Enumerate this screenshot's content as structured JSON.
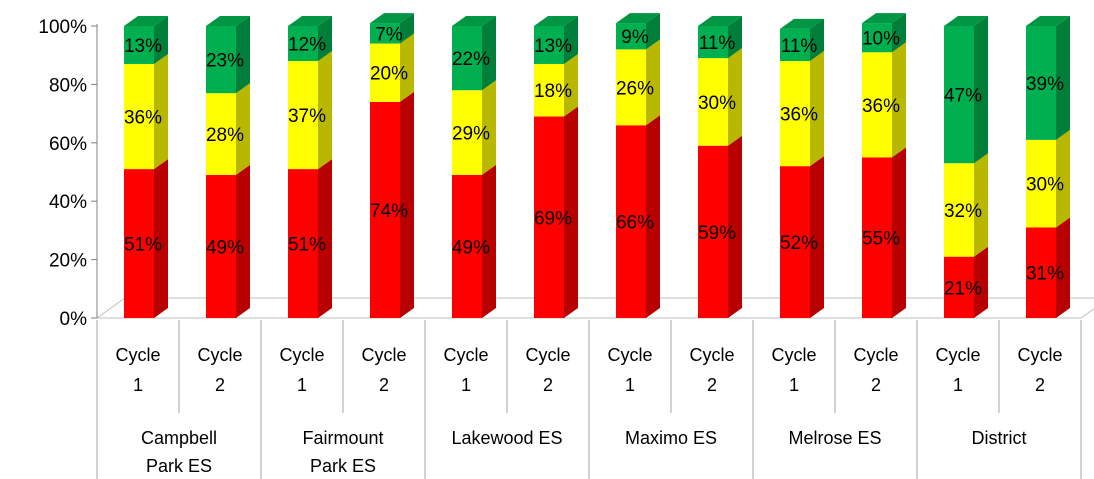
{
  "chart_data": {
    "type": "bar",
    "stacked": true,
    "percent_stacked": true,
    "three_d": true,
    "title": "",
    "xlabel": "",
    "ylabel": "",
    "ylim": [
      0,
      100
    ],
    "yticks": [
      "0%",
      "20%",
      "40%",
      "60%",
      "80%",
      "100%"
    ],
    "grid": false,
    "legend": "none",
    "groups": [
      {
        "label": "Campbell Park ES",
        "lines": [
          "Campbell",
          "Park ES"
        ]
      },
      {
        "label": "Fairmount Park ES",
        "lines": [
          "Fairmount",
          "Park ES"
        ]
      },
      {
        "label": "Lakewood ES",
        "lines": [
          "Lakewood ES"
        ]
      },
      {
        "label": "Maximo ES",
        "lines": [
          "Maximo ES"
        ]
      },
      {
        "label": "Melrose ES",
        "lines": [
          "Melrose ES"
        ]
      },
      {
        "label": "District",
        "lines": [
          "District"
        ]
      }
    ],
    "categories": [
      {
        "group": 0,
        "lines": [
          "Cycle",
          "1"
        ]
      },
      {
        "group": 0,
        "lines": [
          "Cycle",
          "2"
        ]
      },
      {
        "group": 1,
        "lines": [
          "Cycle",
          "1"
        ]
      },
      {
        "group": 1,
        "lines": [
          "Cycle",
          "2"
        ]
      },
      {
        "group": 2,
        "lines": [
          "Cycle",
          "1"
        ]
      },
      {
        "group": 2,
        "lines": [
          "Cycle",
          "2"
        ]
      },
      {
        "group": 3,
        "lines": [
          "Cycle",
          "1"
        ]
      },
      {
        "group": 3,
        "lines": [
          "Cycle",
          "2"
        ]
      },
      {
        "group": 4,
        "lines": [
          "Cycle",
          "1"
        ]
      },
      {
        "group": 4,
        "lines": [
          "Cycle",
          "2"
        ]
      },
      {
        "group": 5,
        "lines": [
          "Cycle",
          "1"
        ]
      },
      {
        "group": 5,
        "lines": [
          "Cycle",
          "2"
        ]
      }
    ],
    "series": [
      {
        "color": "#ff0000",
        "values": [
          51,
          49,
          51,
          74,
          49,
          69,
          66,
          59,
          52,
          55,
          21,
          31
        ],
        "labels": [
          "51%",
          "49%",
          "51%",
          "74%",
          "49%",
          "69%",
          "66%",
          "59%",
          "52%",
          "55%",
          "21%",
          "31%"
        ]
      },
      {
        "color": "#ffff00",
        "values": [
          36,
          28,
          37,
          20,
          29,
          18,
          26,
          30,
          36,
          36,
          32,
          30
        ],
        "labels": [
          "36%",
          "28%",
          "37%",
          "20%",
          "29%",
          "18%",
          "26%",
          "30%",
          "36%",
          "36%",
          "32%",
          "30%"
        ]
      },
      {
        "color": "#00b050",
        "values": [
          13,
          23,
          12,
          7,
          22,
          13,
          9,
          11,
          11,
          10,
          47,
          39
        ],
        "labels": [
          "13%",
          "23%",
          "12%",
          "7%",
          "22%",
          "13%",
          "9%",
          "11%",
          "11%",
          "10%",
          "47%",
          "39%"
        ]
      }
    ]
  }
}
